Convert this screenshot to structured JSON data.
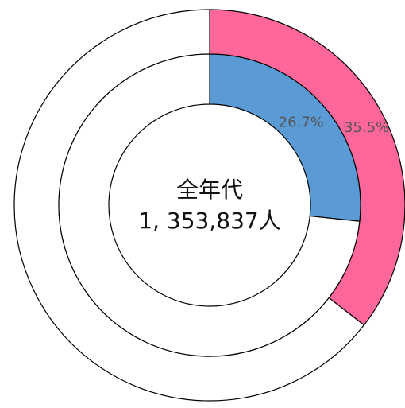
{
  "chart_data": {
    "type": "donut",
    "center_text": [
      "全年代",
      "1, 353,837人"
    ],
    "series": [
      {
        "ring": "outer",
        "colors": [
          "#ff6699",
          "#ffffff"
        ],
        "values": [
          35.5,
          64.5
        ],
        "value_labels": [
          "35.5%",
          null
        ]
      },
      {
        "ring": "inner",
        "colors": [
          "#5b9bd5",
          "#ffffff"
        ],
        "values": [
          26.7,
          73.3
        ],
        "value_labels": [
          "26.7%",
          null
        ]
      }
    ]
  }
}
